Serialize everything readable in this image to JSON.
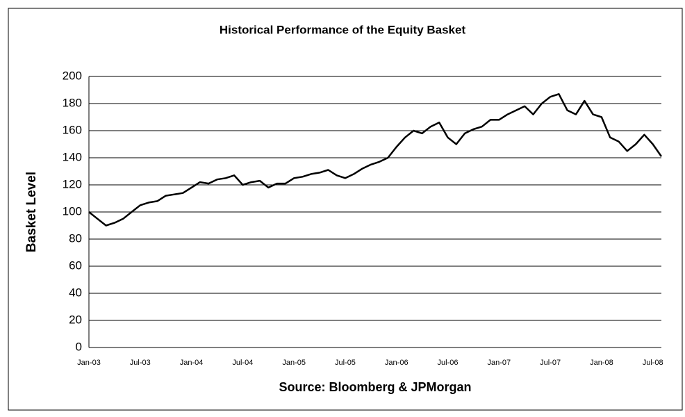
{
  "chart_data": {
    "type": "line",
    "title": "Historical Performance of the Equity Basket",
    "y_label": "Basket Level",
    "x_label": "Source: Bloomberg & JPMorgan",
    "categories": [
      "Jan-03",
      null,
      null,
      null,
      null,
      null,
      "Jul-03",
      null,
      null,
      null,
      null,
      null,
      "Jan-04",
      null,
      null,
      null,
      null,
      null,
      "Jul-04",
      null,
      null,
      null,
      null,
      null,
      "Jan-05",
      null,
      null,
      null,
      null,
      null,
      "Jul-05",
      null,
      null,
      null,
      null,
      null,
      "Jan-06",
      null,
      null,
      null,
      null,
      null,
      "Jul-06",
      null,
      null,
      null,
      null,
      null,
      "Jan-07",
      null,
      null,
      null,
      null,
      null,
      "Jul-07",
      null,
      null,
      null,
      null,
      null,
      "Jan-08",
      null,
      null,
      null,
      null,
      null,
      "Jul-08",
      null
    ],
    "series": [
      {
        "color": "#000000",
        "values": [
          100,
          95,
          90,
          92,
          95,
          100,
          105,
          107,
          108,
          112,
          113,
          114,
          118,
          122,
          121,
          124,
          125,
          127,
          120,
          122,
          123,
          118,
          121,
          121,
          125,
          126,
          128,
          129,
          131,
          127,
          125,
          128,
          132,
          135,
          137,
          140,
          148,
          155,
          160,
          158,
          163,
          166,
          155,
          150,
          158,
          161,
          163,
          168,
          168,
          172,
          175,
          178,
          172,
          180,
          185,
          187,
          175,
          172,
          182,
          172,
          170,
          155,
          152,
          145,
          150,
          157,
          150,
          141
        ]
      }
    ],
    "ylim": [
      0,
      200
    ],
    "yticks": [
      0,
      20,
      40,
      60,
      80,
      100,
      120,
      140,
      160,
      180,
      200
    ],
    "grid": true
  }
}
